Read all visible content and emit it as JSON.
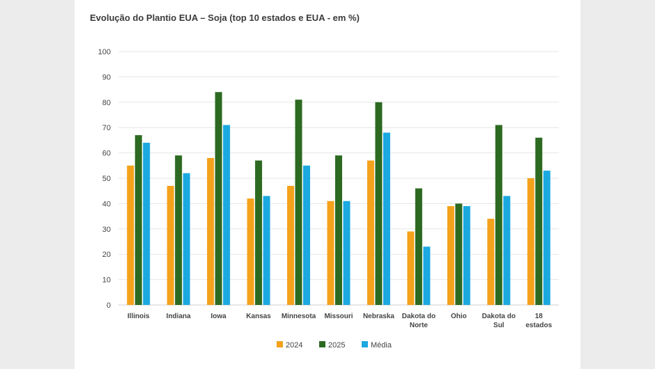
{
  "chart_data": {
    "type": "bar",
    "title": "Evolução do Plantio EUA – Soja (top 10 estados e EUA - em %)",
    "categories": [
      [
        "Illinois"
      ],
      [
        "Indiana"
      ],
      [
        "Iowa"
      ],
      [
        "Kansas"
      ],
      [
        "Minnesota"
      ],
      [
        "Missouri"
      ],
      [
        "Nebraska"
      ],
      [
        "Dakota do",
        "Norte"
      ],
      [
        "Ohio"
      ],
      [
        "Dakota do",
        "Sul"
      ],
      [
        "18",
        "estados"
      ]
    ],
    "series": [
      {
        "name": "2024",
        "color": "#f4a21c",
        "values": [
          55,
          47,
          58,
          42,
          47,
          41,
          57,
          29,
          39,
          34,
          50
        ]
      },
      {
        "name": "2025",
        "color": "#2c6a21",
        "values": [
          67,
          59,
          84,
          57,
          81,
          59,
          80,
          46,
          40,
          71,
          66
        ]
      },
      {
        "name": "Média",
        "color": "#1ba9e0",
        "values": [
          64,
          52,
          71,
          43,
          55,
          41,
          68,
          23,
          39,
          43,
          53
        ]
      }
    ],
    "ylim": [
      0,
      100
    ],
    "yticks": [
      0,
      10,
      20,
      30,
      40,
      50,
      60,
      70,
      80,
      90,
      100
    ],
    "grid": true,
    "legend": "bottom"
  }
}
